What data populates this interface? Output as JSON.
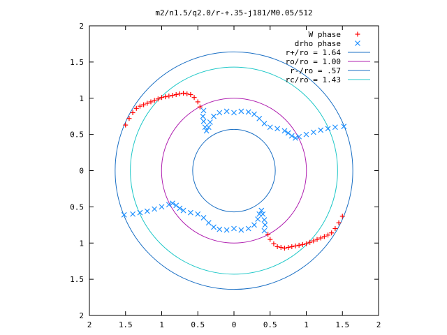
{
  "chart_data": {
    "type": "scatter",
    "title": "m2/n1.5/q2.0/r-+.35-j181/M0.05/512",
    "xlabel": "",
    "ylabel": "",
    "xlim": [
      -2,
      2
    ],
    "ylim": [
      -2,
      2
    ],
    "x_ticks": [
      -2,
      -1.5,
      -1,
      -0.5,
      0,
      0.5,
      1,
      1.5,
      2
    ],
    "x_tick_labels": [
      "2",
      "1.5",
      "1",
      "0.5",
      "0",
      "0.5",
      "1",
      "1.5",
      "2"
    ],
    "y_ticks": [
      2,
      1.5,
      1,
      0.5,
      0,
      -0.5,
      -1,
      -1.5,
      -2
    ],
    "y_tick_labels": [
      "2",
      "1.5",
      "1",
      "0.5",
      "0",
      "0.5",
      "1",
      "1.5",
      "2"
    ],
    "grid": false,
    "legend_position": "top-right",
    "circles": [
      {
        "name": "r+/ro = 1.64",
        "radius": 1.64,
        "color": "#1a6fc4"
      },
      {
        "name": "ro/ro = 1.00",
        "radius": 1.0,
        "color": "#b020b0"
      },
      {
        "name": "r-/ro = .57",
        "radius": 0.57,
        "color": "#1a6fc4"
      },
      {
        "name": "rc/ro = 1.43",
        "radius": 1.43,
        "color": "#20c8c8"
      }
    ],
    "series": [
      {
        "name": "W phase",
        "marker": "+",
        "color": "#ff0000",
        "points": [
          [
            -1.5,
            0.63
          ],
          [
            -1.45,
            0.72
          ],
          [
            -1.4,
            0.8
          ],
          [
            -1.35,
            0.86
          ],
          [
            -1.3,
            0.89
          ],
          [
            -1.25,
            0.91
          ],
          [
            -1.2,
            0.93
          ],
          [
            -1.15,
            0.95
          ],
          [
            -1.1,
            0.97
          ],
          [
            -1.05,
            0.99
          ],
          [
            -1.0,
            1.01
          ],
          [
            -0.95,
            1.02
          ],
          [
            -0.9,
            1.03
          ],
          [
            -0.85,
            1.04
          ],
          [
            -0.8,
            1.05
          ],
          [
            -0.75,
            1.06
          ],
          [
            -0.7,
            1.07
          ],
          [
            -0.65,
            1.06
          ],
          [
            -0.6,
            1.05
          ],
          [
            -0.55,
            1.01
          ],
          [
            -0.5,
            0.95
          ],
          [
            -0.47,
            0.88
          ],
          [
            1.5,
            -0.63
          ],
          [
            1.45,
            -0.72
          ],
          [
            1.4,
            -0.8
          ],
          [
            1.35,
            -0.86
          ],
          [
            1.3,
            -0.89
          ],
          [
            1.25,
            -0.91
          ],
          [
            1.2,
            -0.93
          ],
          [
            1.15,
            -0.95
          ],
          [
            1.1,
            -0.97
          ],
          [
            1.05,
            -0.99
          ],
          [
            1.0,
            -1.01
          ],
          [
            0.95,
            -1.02
          ],
          [
            0.9,
            -1.03
          ],
          [
            0.85,
            -1.04
          ],
          [
            0.8,
            -1.05
          ],
          [
            0.75,
            -1.06
          ],
          [
            0.7,
            -1.07
          ],
          [
            0.65,
            -1.06
          ],
          [
            0.6,
            -1.05
          ],
          [
            0.55,
            -1.01
          ],
          [
            0.5,
            -0.95
          ],
          [
            0.47,
            -0.88
          ]
        ]
      },
      {
        "name": "drho phase",
        "marker": "x",
        "color": "#1e90ff",
        "points": [
          [
            -0.42,
            0.83
          ],
          [
            -0.43,
            0.75
          ],
          [
            -0.42,
            0.68
          ],
          [
            -0.4,
            0.6
          ],
          [
            -0.38,
            0.55
          ],
          [
            -0.35,
            0.6
          ],
          [
            -0.33,
            0.67
          ],
          [
            -0.28,
            0.75
          ],
          [
            -0.2,
            0.8
          ],
          [
            -0.1,
            0.82
          ],
          [
            0.0,
            0.8
          ],
          [
            0.1,
            0.82
          ],
          [
            0.2,
            0.81
          ],
          [
            0.28,
            0.78
          ],
          [
            0.35,
            0.72
          ],
          [
            0.42,
            0.65
          ],
          [
            0.5,
            0.6
          ],
          [
            0.6,
            0.58
          ],
          [
            0.7,
            0.55
          ],
          [
            0.75,
            0.52
          ],
          [
            0.8,
            0.48
          ],
          [
            0.85,
            0.45
          ],
          [
            0.9,
            0.47
          ],
          [
            1.0,
            0.5
          ],
          [
            1.1,
            0.53
          ],
          [
            1.2,
            0.56
          ],
          [
            1.3,
            0.58
          ],
          [
            1.4,
            0.6
          ],
          [
            1.52,
            0.61
          ],
          [
            0.42,
            -0.83
          ],
          [
            0.43,
            -0.75
          ],
          [
            0.42,
            -0.68
          ],
          [
            0.4,
            -0.6
          ],
          [
            0.38,
            -0.55
          ],
          [
            0.35,
            -0.6
          ],
          [
            0.33,
            -0.67
          ],
          [
            0.28,
            -0.75
          ],
          [
            0.2,
            -0.8
          ],
          [
            0.1,
            -0.82
          ],
          [
            0.0,
            -0.8
          ],
          [
            -0.1,
            -0.82
          ],
          [
            -0.2,
            -0.81
          ],
          [
            -0.28,
            -0.78
          ],
          [
            -0.35,
            -0.72
          ],
          [
            -0.42,
            -0.65
          ],
          [
            -0.5,
            -0.6
          ],
          [
            -0.6,
            -0.58
          ],
          [
            -0.7,
            -0.55
          ],
          [
            -0.75,
            -0.52
          ],
          [
            -0.8,
            -0.48
          ],
          [
            -0.85,
            -0.45
          ],
          [
            -0.9,
            -0.47
          ],
          [
            -1.0,
            -0.5
          ],
          [
            -1.1,
            -0.53
          ],
          [
            -1.2,
            -0.56
          ],
          [
            -1.3,
            -0.58
          ],
          [
            -1.4,
            -0.6
          ],
          [
            -1.52,
            -0.61
          ]
        ]
      }
    ]
  }
}
